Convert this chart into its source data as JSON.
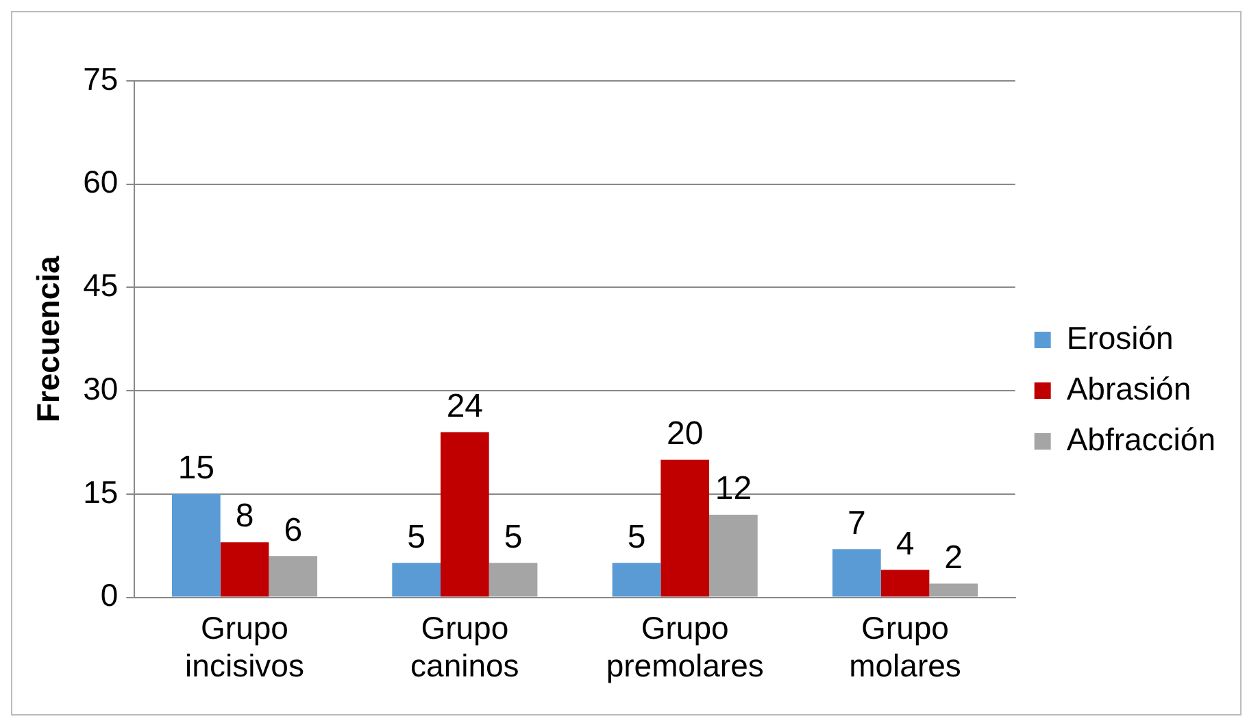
{
  "chart_data": {
    "type": "bar",
    "ylabel": "Frecuencia",
    "categories": [
      "Grupo incisivos",
      "Grupo caninos",
      "Grupo premolares",
      "Grupo molares"
    ],
    "series": [
      {
        "name": "Erosión",
        "color": "#5b9bd5",
        "values": [
          15,
          5,
          5,
          7
        ]
      },
      {
        "name": "Abrasión",
        "color": "#c00000",
        "values": [
          8,
          24,
          20,
          4
        ]
      },
      {
        "name": "Abfracción",
        "color": "#a5a5a5",
        "values": [
          6,
          5,
          12,
          2
        ]
      }
    ],
    "ylim": [
      0,
      75
    ],
    "yticks": [
      0,
      15,
      30,
      45,
      60,
      75
    ],
    "grid": "y",
    "legend": "right",
    "data_labels": true
  }
}
